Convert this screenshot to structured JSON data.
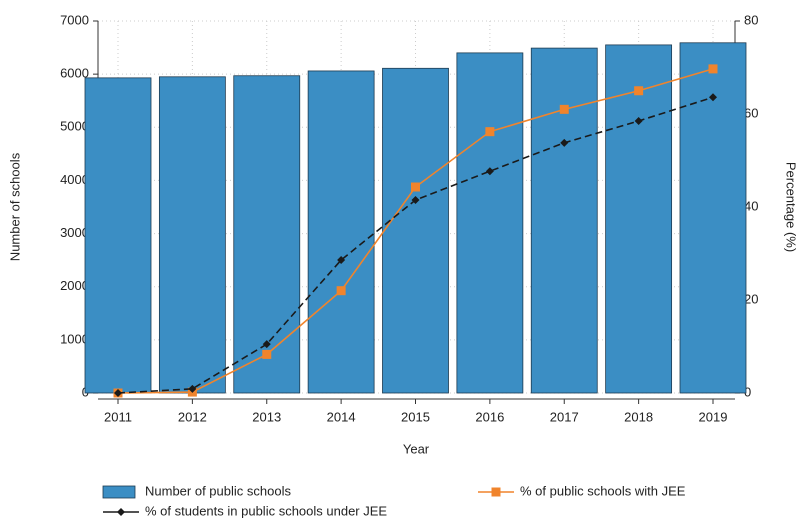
{
  "chart_data": {
    "type": "bar-line",
    "x_label": "Year",
    "y_label": "Number of schools",
    "y2_label": "Percentage (%)",
    "categories": [
      "2011",
      "2012",
      "2013",
      "2014",
      "2015",
      "2016",
      "2017",
      "2018",
      "2019"
    ],
    "series": [
      {
        "name": "Number of public schools",
        "type": "bar",
        "axis": "y",
        "color": "#3b8ec4",
        "values": [
          5930,
          5950,
          5970,
          6060,
          6110,
          6400,
          6490,
          6550,
          6590
        ]
      },
      {
        "name": "% of public schools with JEE",
        "type": "line",
        "axis": "y2",
        "color": "#f0842c",
        "marker": "square",
        "dashed": false,
        "values": [
          0,
          0.2,
          8.3,
          22,
          44.3,
          56.2,
          61,
          65,
          69.7
        ]
      },
      {
        "name": "% of students in public schools under JEE",
        "type": "line",
        "axis": "y2",
        "color": "#1a1a1a",
        "marker": "diamond",
        "dashed": true,
        "values": [
          0,
          0.9,
          10.5,
          28.6,
          41.5,
          47.7,
          53.8,
          58.5,
          63.6
        ]
      }
    ],
    "ylim": [
      0,
      7000
    ],
    "yticks": [
      0,
      1000,
      2000,
      3000,
      4000,
      5000,
      6000,
      7000
    ],
    "y2lim": [
      0,
      80
    ],
    "y2ticks": [
      0,
      20,
      40,
      60,
      80
    ],
    "grid": true
  }
}
